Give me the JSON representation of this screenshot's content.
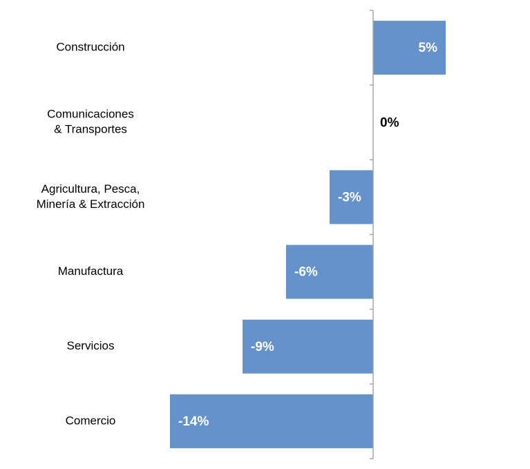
{
  "chart_data": {
    "type": "bar",
    "orientation": "horizontal",
    "categories": [
      [
        "Construcción"
      ],
      [
        "Comunicaciones",
        "& Transportes"
      ],
      [
        "Agricultura, Pesca,",
        "Minería & Extracción"
      ],
      [
        "Manufactura"
      ],
      [
        "Servicios"
      ],
      [
        "Comercio"
      ]
    ],
    "values": [
      5,
      0,
      -3,
      -6,
      -9,
      -14
    ],
    "value_labels": [
      "5%",
      "0%",
      "-3%",
      "-6%",
      "-9%",
      "-14%"
    ],
    "unit": "%",
    "title": "",
    "xlabel": "",
    "ylabel": "",
    "xlim": [
      -14,
      5
    ],
    "grid": false,
    "legend": "none",
    "colors": {
      "bar": "#6592CB",
      "axis": "#A6A6A6",
      "label_inside": "#FFFFFF",
      "label_outside": "#000000"
    }
  }
}
